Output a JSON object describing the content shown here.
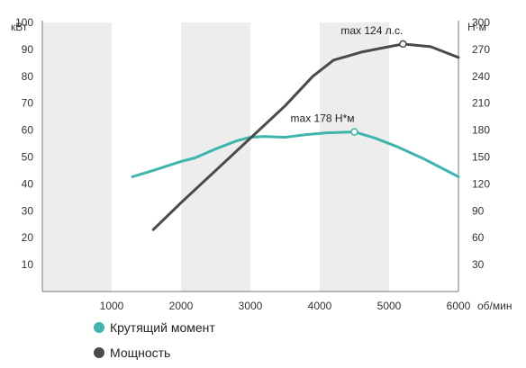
{
  "chart_data": {
    "type": "line",
    "x_unit": "об/мин",
    "y_left_unit": "кВт",
    "y_right_unit": "Н·м",
    "x_ticks": [
      1000,
      2000,
      3000,
      4000,
      5000,
      6000
    ],
    "y_left_ticks": [
      10,
      20,
      30,
      40,
      50,
      60,
      70,
      80,
      90,
      100
    ],
    "y_right_ticks": [
      30,
      60,
      90,
      120,
      150,
      180,
      210,
      240,
      270,
      300
    ],
    "xlim": [
      0,
      6000
    ],
    "ylim_left": [
      0,
      100
    ],
    "ylim_right": [
      0,
      300
    ],
    "shaded_bands": [
      [
        0,
        1000
      ],
      [
        2000,
        3000
      ],
      [
        4000,
        5000
      ]
    ],
    "grid": false,
    "legend_position": "bottom-left",
    "series": [
      {
        "name": "Крутящий момент",
        "axis": "right",
        "color": "#3eb5ad",
        "points": [
          [
            1300,
            128
          ],
          [
            1600,
            135
          ],
          [
            2000,
            145
          ],
          [
            2200,
            149
          ],
          [
            2500,
            159
          ],
          [
            2800,
            168
          ],
          [
            3000,
            172
          ],
          [
            3200,
            173
          ],
          [
            3500,
            172
          ],
          [
            3800,
            175
          ],
          [
            4100,
            177
          ],
          [
            4500,
            178
          ],
          [
            4800,
            171
          ],
          [
            5100,
            162
          ],
          [
            5500,
            148
          ],
          [
            6000,
            128
          ]
        ],
        "max_point": [
          4500,
          178
        ],
        "annotation": "max 178 Н*м"
      },
      {
        "name": "Мощность",
        "axis": "left",
        "color": "#4a4a4a",
        "points": [
          [
            1600,
            23
          ],
          [
            2000,
            33
          ],
          [
            2500,
            45
          ],
          [
            3000,
            57
          ],
          [
            3500,
            69
          ],
          [
            3900,
            80
          ],
          [
            4200,
            86
          ],
          [
            4600,
            89
          ],
          [
            5000,
            91
          ],
          [
            5200,
            92
          ],
          [
            5600,
            91
          ],
          [
            6000,
            87
          ]
        ],
        "max_point": [
          5200,
          92
        ],
        "annotation": "max 124 л.с."
      }
    ]
  }
}
